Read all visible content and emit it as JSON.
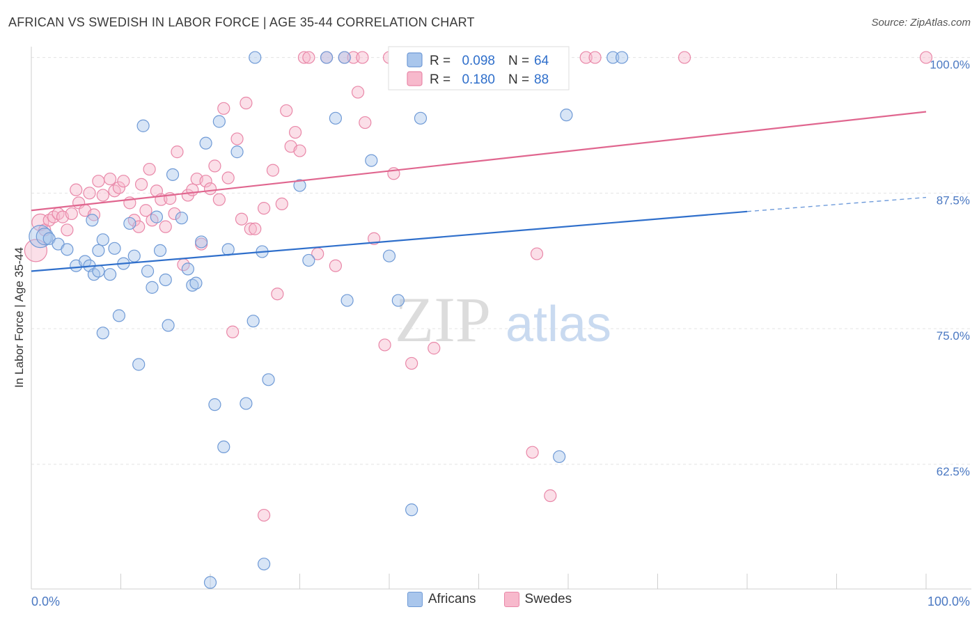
{
  "title": "AFRICAN VS SWEDISH IN LABOR FORCE | AGE 35-44 CORRELATION CHART",
  "source": "Source: ZipAtlas.com",
  "watermark": {
    "zip": "ZIP",
    "atlas": "atlas"
  },
  "chart_data": {
    "type": "scatter",
    "ylabel": "In Labor Force | Age 35-44",
    "xlim": [
      0,
      100
    ],
    "ylim": [
      51,
      101
    ],
    "x_tick_labels": [
      "0.0%",
      "100.0%"
    ],
    "y_ticks": [
      62.5,
      75.0,
      87.5,
      100.0
    ],
    "y_tick_labels": [
      "62.5%",
      "75.0%",
      "87.5%",
      "100.0%"
    ],
    "grid": true,
    "legend_stats": [
      {
        "r_label": "R =",
        "r_value": "0.098",
        "n_label": "N =",
        "n_value": "64"
      },
      {
        "r_label": "R =",
        "r_value": "0.180",
        "n_label": "N =",
        "n_value": "88"
      }
    ],
    "series": [
      {
        "name": "Africans",
        "fill": "#a9c6ec",
        "stroke": "#6f9ad6",
        "line_color": "#2f6fcb",
        "trend": {
          "x0": 0,
          "y0": 80.3,
          "x1": 80,
          "y1": 85.8,
          "dash_to_x": 100,
          "dash_to_y": 87.1
        },
        "points": [
          [
            1,
            83.5,
            3
          ],
          [
            1.5,
            83.5,
            2
          ],
          [
            2,
            83.3,
            1
          ],
          [
            3,
            82.8,
            1
          ],
          [
            4,
            82.3,
            1
          ],
          [
            5,
            80.8,
            1
          ],
          [
            6,
            81.2,
            1
          ],
          [
            6.5,
            80.8,
            1
          ],
          [
            7,
            80.0,
            1
          ],
          [
            7.5,
            80.3,
            1
          ],
          [
            6.8,
            85.0,
            1
          ],
          [
            7.5,
            82.2,
            1
          ],
          [
            8,
            83.2,
            1
          ],
          [
            8.8,
            80.0,
            1
          ],
          [
            9.3,
            82.4,
            1
          ],
          [
            9.8,
            76.2,
            1
          ],
          [
            8,
            74.6,
            1
          ],
          [
            10.3,
            81.0,
            1
          ],
          [
            11,
            84.7,
            1
          ],
          [
            11.5,
            81.7,
            1
          ],
          [
            12,
            71.7,
            1
          ],
          [
            12.5,
            93.7,
            1
          ],
          [
            13,
            80.3,
            1
          ],
          [
            13.5,
            78.8,
            1
          ],
          [
            14,
            85.3,
            1
          ],
          [
            14.4,
            82.2,
            1
          ],
          [
            15,
            79.5,
            1
          ],
          [
            15.3,
            75.3,
            1
          ],
          [
            15.8,
            89.2,
            1
          ],
          [
            16.8,
            85.2,
            1
          ],
          [
            17.5,
            80.5,
            1
          ],
          [
            18,
            79.0,
            1
          ],
          [
            18.4,
            79.2,
            1
          ],
          [
            19,
            83.0,
            1
          ],
          [
            19.5,
            92.1,
            1
          ],
          [
            20.5,
            68.0,
            1
          ],
          [
            21,
            94.1,
            1
          ],
          [
            21.5,
            64.1,
            1
          ],
          [
            22,
            82.3,
            1
          ],
          [
            23,
            91.3,
            1
          ],
          [
            24,
            68.1,
            1
          ],
          [
            24.8,
            75.7,
            1
          ],
          [
            25,
            100,
            1
          ],
          [
            25.8,
            82.1,
            1
          ],
          [
            26,
            53.3,
            1
          ],
          [
            26.5,
            70.3,
            1
          ],
          [
            30,
            88.2,
            1
          ],
          [
            31,
            81.3,
            1
          ],
          [
            33,
            100,
            1
          ],
          [
            34,
            94.4,
            1
          ],
          [
            35,
            100,
            1
          ],
          [
            35.3,
            77.6,
            1
          ],
          [
            38,
            90.5,
            1
          ],
          [
            40,
            81.7,
            1
          ],
          [
            41,
            77.6,
            1
          ],
          [
            42,
            100,
            1
          ],
          [
            42.5,
            58.3,
            1
          ],
          [
            43.5,
            94.4,
            1
          ],
          [
            44,
            100,
            1
          ],
          [
            20,
            51.6,
            1
          ],
          [
            59,
            63.2,
            1
          ],
          [
            59.8,
            94.7,
            1
          ],
          [
            65,
            100,
            1
          ],
          [
            66,
            100,
            1
          ]
        ]
      },
      {
        "name": "Swedes",
        "fill": "#f7b9cc",
        "stroke": "#e987a8",
        "line_color": "#e0668f",
        "trend": {
          "x0": 0,
          "y0": 85.9,
          "x1": 100,
          "y1": 95.0
        },
        "points": [
          [
            0.5,
            82.2,
            3
          ],
          [
            1,
            84.8,
            2
          ],
          [
            1.5,
            84.1,
            1
          ],
          [
            2,
            85.0,
            1
          ],
          [
            2.5,
            85.3,
            1
          ],
          [
            3,
            85.6,
            1
          ],
          [
            3.5,
            85.3,
            1
          ],
          [
            4,
            84.1,
            1
          ],
          [
            4.5,
            85.6,
            1
          ],
          [
            5,
            87.8,
            1
          ],
          [
            5.3,
            86.6,
            1
          ],
          [
            6,
            85.9,
            1
          ],
          [
            6.5,
            87.5,
            1
          ],
          [
            7,
            85.5,
            1
          ],
          [
            7.5,
            88.6,
            1
          ],
          [
            8,
            87.3,
            1
          ],
          [
            8.8,
            88.8,
            1
          ],
          [
            9.3,
            87.7,
            1
          ],
          [
            9.8,
            88.0,
            1
          ],
          [
            10.3,
            88.6,
            1
          ],
          [
            11,
            86.6,
            1
          ],
          [
            11.5,
            85.0,
            1
          ],
          [
            12,
            84.4,
            1
          ],
          [
            12.3,
            88.3,
            1
          ],
          [
            12.8,
            85.9,
            1
          ],
          [
            13.2,
            89.7,
            1
          ],
          [
            13.5,
            85.0,
            1
          ],
          [
            14,
            87.7,
            1
          ],
          [
            14.5,
            86.9,
            1
          ],
          [
            15,
            84.4,
            1
          ],
          [
            15.5,
            87.0,
            1
          ],
          [
            16,
            85.6,
            1
          ],
          [
            16.3,
            91.3,
            1
          ],
          [
            17,
            80.9,
            1
          ],
          [
            17.5,
            87.3,
            1
          ],
          [
            18,
            87.8,
            1
          ],
          [
            18.5,
            88.8,
            1
          ],
          [
            19,
            82.8,
            1
          ],
          [
            19.5,
            88.6,
            1
          ],
          [
            20,
            87.9,
            1
          ],
          [
            20.5,
            90.0,
            1
          ],
          [
            21,
            86.9,
            1
          ],
          [
            21.5,
            95.3,
            1
          ],
          [
            22,
            88.9,
            1
          ],
          [
            22.5,
            74.7,
            1
          ],
          [
            23,
            92.5,
            1
          ],
          [
            23.5,
            85.1,
            1
          ],
          [
            24,
            95.8,
            1
          ],
          [
            24.5,
            84.2,
            1
          ],
          [
            25,
            84.2,
            1
          ],
          [
            26,
            86.1,
            1
          ],
          [
            27,
            89.6,
            1
          ],
          [
            27.5,
            78.2,
            1
          ],
          [
            28,
            86.5,
            1
          ],
          [
            28.5,
            95.1,
            1
          ],
          [
            29,
            91.8,
            1
          ],
          [
            29.5,
            93.1,
            1
          ],
          [
            30,
            91.4,
            1
          ],
          [
            30.5,
            100,
            1
          ],
          [
            31,
            100,
            1
          ],
          [
            32,
            81.9,
            1
          ],
          [
            33,
            100,
            1
          ],
          [
            34,
            80.8,
            1
          ],
          [
            35,
            100,
            1
          ],
          [
            36,
            100,
            1
          ],
          [
            36.5,
            96.8,
            1
          ],
          [
            37,
            100,
            1
          ],
          [
            37.3,
            94.0,
            1
          ],
          [
            38.3,
            83.3,
            1
          ],
          [
            39.5,
            73.5,
            1
          ],
          [
            40,
            100,
            1
          ],
          [
            40.5,
            89.3,
            1
          ],
          [
            41,
            100,
            1
          ],
          [
            42,
            100,
            1
          ],
          [
            42.5,
            71.8,
            1
          ],
          [
            43,
            100,
            1
          ],
          [
            44,
            100,
            1
          ],
          [
            45,
            73.2,
            1
          ],
          [
            46,
            100,
            1
          ],
          [
            47,
            100,
            1
          ],
          [
            26,
            57.8,
            1
          ],
          [
            56,
            63.6,
            1
          ],
          [
            56.5,
            81.9,
            1
          ],
          [
            58,
            59.6,
            1
          ],
          [
            62,
            100,
            1
          ],
          [
            63,
            100,
            1
          ],
          [
            73,
            100,
            1
          ],
          [
            100,
            100,
            1
          ]
        ]
      }
    ]
  }
}
